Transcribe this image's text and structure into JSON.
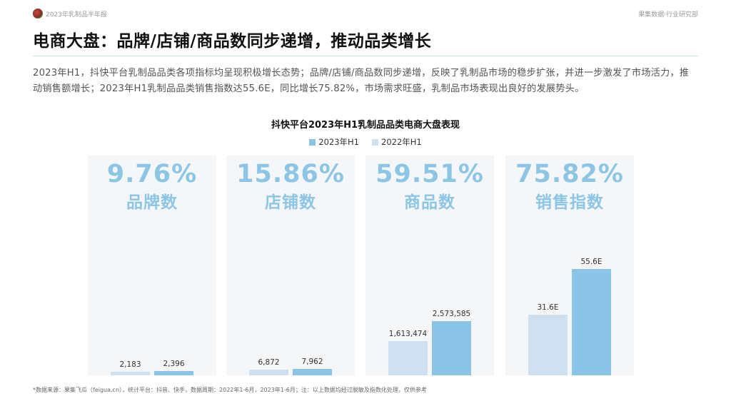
{
  "header": {
    "report_tag": "2023年乳制品半年报",
    "brand_tag": "果集数据·行业研究部"
  },
  "page_title": "电商大盘：品牌/店铺/商品数同步递增，推动品类增长",
  "summary": "2023年H1，抖快平台乳制品品类各项指标均呈现积极增长态势；品牌/店铺/商品数同步递增，反映了乳制品市场的稳步扩张，并进一步激发了市场活力，推动销售额增长；2023年H1乳制品品类销售指数达55.6E，同比增长75.82%，市场需求旺盛，乳制品市场表现出良好的发展势头。",
  "colors": {
    "accent": "#8cc6e6",
    "series_2023": "#8ac4e6",
    "series_2022": "#cfe1f1",
    "panel": "#f5f6f7"
  },
  "footnote": "*数据来源：果集飞瓜（feigua.cn），统计平台：抖音、快手，数据周期：2022年1-6月，2023年1-6月；注：以上数据均经过脱敏及指数化处理，仅供参考",
  "chart_data": {
    "type": "bar",
    "title": "抖快平台2023年H1乳制品品类电商大盘表现",
    "legend": [
      "2023年H1",
      "2022年H1"
    ],
    "legend_position": "top-center",
    "series_order_in_bars": [
      "2022年H1",
      "2023年H1"
    ],
    "panels": [
      {
        "metric": "品牌数",
        "growth": "9.76%",
        "values": {
          "2022年H1": 2183,
          "2023年H1": 2396
        },
        "labels": {
          "2022年H1": "2,183",
          "2023年H1": "2,396"
        },
        "scale_max": 100000
      },
      {
        "metric": "店铺数",
        "growth": "15.86%",
        "values": {
          "2022年H1": 6872,
          "2023年H1": 7962
        },
        "labels": {
          "2022年H1": "6,872",
          "2023年H1": "7,962"
        },
        "scale_max": 210000
      },
      {
        "metric": "商品数",
        "growth": "59.51%",
        "values": {
          "2022年H1": 1613474,
          "2023年H1": 2573585
        },
        "labels": {
          "2022年H1": "1,613,474",
          "2023年H1": "2,573,585"
        },
        "scale_max": 7800000
      },
      {
        "metric": "销售指数",
        "growth": "75.82%",
        "values": {
          "2022年H1": 31.6,
          "2023年H1": 55.6
        },
        "labels": {
          "2022年H1": "31.6E",
          "2023年H1": "55.6E"
        },
        "scale_max": 86
      }
    ]
  }
}
